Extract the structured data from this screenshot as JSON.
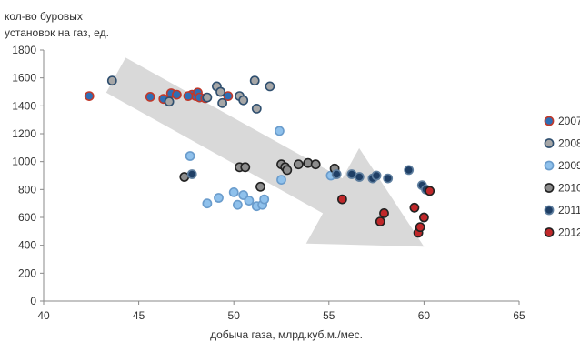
{
  "chart_data": {
    "type": "scatter",
    "xlabel": "добыча газа, млрд.куб.м./мес.",
    "ylabel_lines": [
      "кол-во буровых",
      "установок на газ, ед."
    ],
    "xlim": [
      40,
      65
    ],
    "ylim": [
      0,
      1800
    ],
    "xticks": [
      "40",
      "45",
      "50",
      "55",
      "60",
      "65"
    ],
    "yticks": [
      "0",
      "200",
      "400",
      "600",
      "800",
      "1000",
      "1200",
      "1400",
      "1600",
      "1800"
    ],
    "grid": false,
    "legend_position": "right",
    "trend_arrow": {
      "from": [
        43.8,
        1620
      ],
      "to": [
        60.0,
        390
      ],
      "color": "#d9d9d9"
    },
    "series": [
      {
        "name": "2007",
        "fill": "#2e6fb6",
        "stroke": "#c0392b",
        "points": [
          [
            42.4,
            1470
          ],
          [
            45.6,
            1465
          ],
          [
            46.3,
            1450
          ],
          [
            46.7,
            1490
          ],
          [
            47.0,
            1480
          ],
          [
            47.8,
            1480
          ],
          [
            48.0,
            1470
          ],
          [
            48.1,
            1495
          ],
          [
            48.2,
            1460
          ],
          [
            48.5,
            1455
          ],
          [
            49.7,
            1470
          ],
          [
            47.6,
            1470
          ]
        ]
      },
      {
        "name": "2008",
        "fill": "#a6a6a6",
        "stroke": "#2f4f6f",
        "points": [
          [
            43.6,
            1580
          ],
          [
            46.6,
            1430
          ],
          [
            48.6,
            1460
          ],
          [
            49.1,
            1540
          ],
          [
            49.3,
            1500
          ],
          [
            49.4,
            1420
          ],
          [
            50.3,
            1470
          ],
          [
            50.5,
            1440
          ],
          [
            51.1,
            1580
          ],
          [
            51.2,
            1380
          ],
          [
            51.9,
            1540
          ]
        ]
      },
      {
        "name": "2009",
        "fill": "#8fc1ec",
        "stroke": "#6a9ccc",
        "points": [
          [
            47.7,
            1040
          ],
          [
            48.6,
            700
          ],
          [
            49.2,
            740
          ],
          [
            50.0,
            780
          ],
          [
            50.2,
            690
          ],
          [
            50.5,
            760
          ],
          [
            50.8,
            720
          ],
          [
            51.2,
            680
          ],
          [
            51.5,
            690
          ],
          [
            51.6,
            730
          ],
          [
            52.4,
            1220
          ],
          [
            52.5,
            870
          ],
          [
            55.1,
            900
          ]
        ]
      },
      {
        "name": "2010",
        "fill": "#8c8c8c",
        "stroke": "#222222",
        "points": [
          [
            47.4,
            890
          ],
          [
            50.3,
            960
          ],
          [
            50.6,
            960
          ],
          [
            51.4,
            820
          ],
          [
            52.5,
            980
          ],
          [
            52.7,
            960
          ],
          [
            52.8,
            940
          ],
          [
            53.4,
            980
          ],
          [
            53.9,
            990
          ],
          [
            54.3,
            980
          ],
          [
            55.3,
            950
          ]
        ]
      },
      {
        "name": "2011",
        "fill": "#1f3f66",
        "stroke": "#5f7f9f",
        "points": [
          [
            47.8,
            910
          ],
          [
            55.4,
            910
          ],
          [
            56.2,
            910
          ],
          [
            56.6,
            890
          ],
          [
            57.3,
            880
          ],
          [
            57.5,
            900
          ],
          [
            58.1,
            880
          ],
          [
            59.2,
            940
          ],
          [
            59.9,
            830
          ],
          [
            60.1,
            800
          ]
        ]
      },
      {
        "name": "2012",
        "fill": "#c0282a",
        "stroke": "#222222",
        "points": [
          [
            55.7,
            730
          ],
          [
            57.7,
            570
          ],
          [
            57.9,
            630
          ],
          [
            59.5,
            670
          ],
          [
            59.7,
            490
          ],
          [
            59.8,
            530
          ],
          [
            60.0,
            600
          ],
          [
            60.3,
            790
          ]
        ]
      }
    ]
  }
}
